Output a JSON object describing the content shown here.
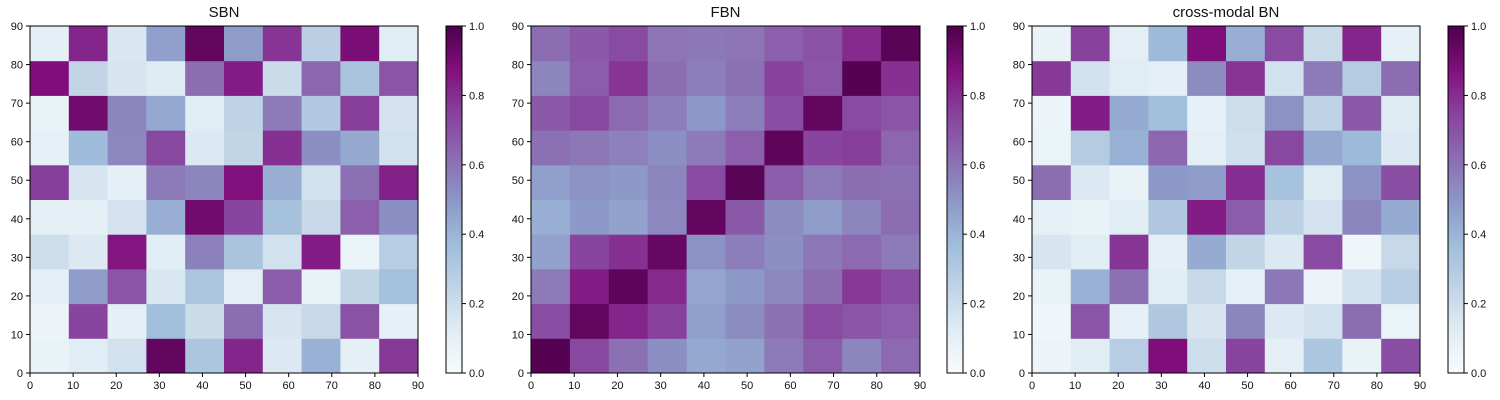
{
  "chart_data": [
    {
      "type": "heatmap",
      "title": "SBN",
      "x_ticks": [
        0,
        10,
        20,
        30,
        40,
        50,
        60,
        70,
        80,
        90
      ],
      "y_ticks": [
        0,
        10,
        20,
        30,
        40,
        50,
        60,
        70,
        80,
        90
      ],
      "xlim": [
        0,
        90
      ],
      "ylim": [
        0,
        90
      ],
      "colorbar": {
        "range": [
          0.0,
          1.0
        ],
        "ticks": [
          "0.0",
          "0.2",
          "0.4",
          "0.6",
          "0.8",
          "1.0"
        ]
      },
      "colormap": "BuPu",
      "values_description": "sparse structural network matrix",
      "values": [
        [
          0.08,
          0.12,
          0.18,
          0.95,
          0.32,
          0.82,
          0.14,
          0.41,
          0.1,
          0.77
        ],
        [
          0.06,
          0.74,
          0.1,
          0.36,
          0.21,
          0.62,
          0.16,
          0.22,
          0.7,
          0.09
        ],
        [
          0.1,
          0.48,
          0.69,
          0.15,
          0.32,
          0.11,
          0.67,
          0.08,
          0.24,
          0.35
        ],
        [
          0.2,
          0.14,
          0.86,
          0.12,
          0.56,
          0.33,
          0.18,
          0.84,
          0.07,
          0.28
        ],
        [
          0.11,
          0.1,
          0.17,
          0.42,
          0.91,
          0.74,
          0.35,
          0.22,
          0.66,
          0.52
        ],
        [
          0.76,
          0.16,
          0.1,
          0.58,
          0.55,
          0.87,
          0.42,
          0.18,
          0.61,
          0.83
        ],
        [
          0.09,
          0.37,
          0.54,
          0.73,
          0.14,
          0.24,
          0.79,
          0.52,
          0.44,
          0.18
        ],
        [
          0.08,
          0.91,
          0.55,
          0.44,
          0.12,
          0.25,
          0.58,
          0.3,
          0.76,
          0.17
        ],
        [
          0.88,
          0.24,
          0.16,
          0.13,
          0.62,
          0.84,
          0.21,
          0.64,
          0.33,
          0.69
        ],
        [
          0.1,
          0.82,
          0.15,
          0.47,
          0.95,
          0.48,
          0.78,
          0.27,
          0.89,
          0.12
        ]
      ]
    },
    {
      "type": "heatmap",
      "title": "FBN",
      "x_ticks": [
        0,
        10,
        20,
        30,
        40,
        50,
        60,
        70,
        80,
        90
      ],
      "y_ticks": [
        0,
        10,
        20,
        30,
        40,
        50,
        60,
        70,
        80,
        90
      ],
      "xlim": [
        0,
        90
      ],
      "ylim": [
        0,
        90
      ],
      "colorbar": {
        "range": [
          0.0,
          1.0
        ],
        "ticks": [
          "0.0",
          "0.2",
          "0.4",
          "0.6",
          "0.8",
          "1.0"
        ]
      },
      "colormap": "BuPu",
      "values_description": "dense functional network matrix",
      "values": [
        [
          0.98,
          0.73,
          0.61,
          0.52,
          0.44,
          0.46,
          0.58,
          0.67,
          0.55,
          0.63
        ],
        [
          0.71,
          0.95,
          0.82,
          0.75,
          0.47,
          0.53,
          0.61,
          0.72,
          0.69,
          0.66
        ],
        [
          0.58,
          0.84,
          0.96,
          0.81,
          0.45,
          0.49,
          0.54,
          0.62,
          0.77,
          0.71
        ],
        [
          0.46,
          0.74,
          0.79,
          0.94,
          0.51,
          0.57,
          0.52,
          0.59,
          0.63,
          0.58
        ],
        [
          0.42,
          0.49,
          0.46,
          0.54,
          0.95,
          0.68,
          0.53,
          0.48,
          0.55,
          0.62
        ],
        [
          0.47,
          0.51,
          0.49,
          0.55,
          0.72,
          0.97,
          0.67,
          0.58,
          0.62,
          0.61
        ],
        [
          0.61,
          0.59,
          0.56,
          0.52,
          0.58,
          0.66,
          0.96,
          0.74,
          0.76,
          0.64
        ],
        [
          0.68,
          0.73,
          0.63,
          0.57,
          0.49,
          0.57,
          0.71,
          0.95,
          0.72,
          0.69
        ],
        [
          0.55,
          0.67,
          0.78,
          0.62,
          0.57,
          0.61,
          0.75,
          0.69,
          0.98,
          0.79
        ],
        [
          0.62,
          0.68,
          0.72,
          0.6,
          0.59,
          0.6,
          0.66,
          0.7,
          0.81,
          0.97
        ]
      ]
    },
    {
      "type": "heatmap",
      "title": "cross-modal BN",
      "x_ticks": [
        0,
        10,
        20,
        30,
        40,
        50,
        60,
        70,
        80,
        90
      ],
      "y_ticks": [
        0,
        10,
        20,
        30,
        40,
        50,
        60,
        70,
        80,
        90
      ],
      "xlim": [
        0,
        90
      ],
      "ylim": [
        0,
        90
      ],
      "colorbar": {
        "range": [
          0.0,
          1.0
        ],
        "ticks": [
          "0.0",
          "0.2",
          "0.4",
          "0.6",
          "0.8",
          "1.0"
        ]
      },
      "colormap": "BuPu",
      "values_description": "sparse cross-modal network matrix",
      "values": [
        [
          0.06,
          0.12,
          0.28,
          0.88,
          0.2,
          0.74,
          0.11,
          0.32,
          0.08,
          0.71
        ],
        [
          0.05,
          0.69,
          0.09,
          0.31,
          0.16,
          0.55,
          0.14,
          0.18,
          0.62,
          0.07
        ],
        [
          0.08,
          0.41,
          0.61,
          0.12,
          0.22,
          0.09,
          0.59,
          0.06,
          0.18,
          0.28
        ],
        [
          0.16,
          0.12,
          0.78,
          0.1,
          0.43,
          0.24,
          0.14,
          0.72,
          0.05,
          0.22
        ],
        [
          0.09,
          0.08,
          0.12,
          0.31,
          0.84,
          0.67,
          0.26,
          0.17,
          0.55,
          0.43
        ],
        [
          0.62,
          0.14,
          0.08,
          0.49,
          0.48,
          0.8,
          0.34,
          0.13,
          0.51,
          0.71
        ],
        [
          0.07,
          0.29,
          0.41,
          0.64,
          0.11,
          0.19,
          0.73,
          0.44,
          0.38,
          0.14
        ],
        [
          0.06,
          0.84,
          0.43,
          0.36,
          0.09,
          0.2,
          0.51,
          0.25,
          0.68,
          0.13
        ],
        [
          0.77,
          0.18,
          0.12,
          0.1,
          0.53,
          0.78,
          0.18,
          0.58,
          0.29,
          0.62
        ],
        [
          0.08,
          0.75,
          0.11,
          0.38,
          0.88,
          0.42,
          0.72,
          0.21,
          0.82,
          0.09
        ]
      ]
    }
  ],
  "colors": {
    "axis": "#000000",
    "text": "#111111",
    "colormap_stops": [
      "#f7fcfd",
      "#e0ecf4",
      "#bfd3e6",
      "#9ebcda",
      "#8c96c6",
      "#8c6bb1",
      "#88419d",
      "#810f7c",
      "#4d004b"
    ]
  }
}
